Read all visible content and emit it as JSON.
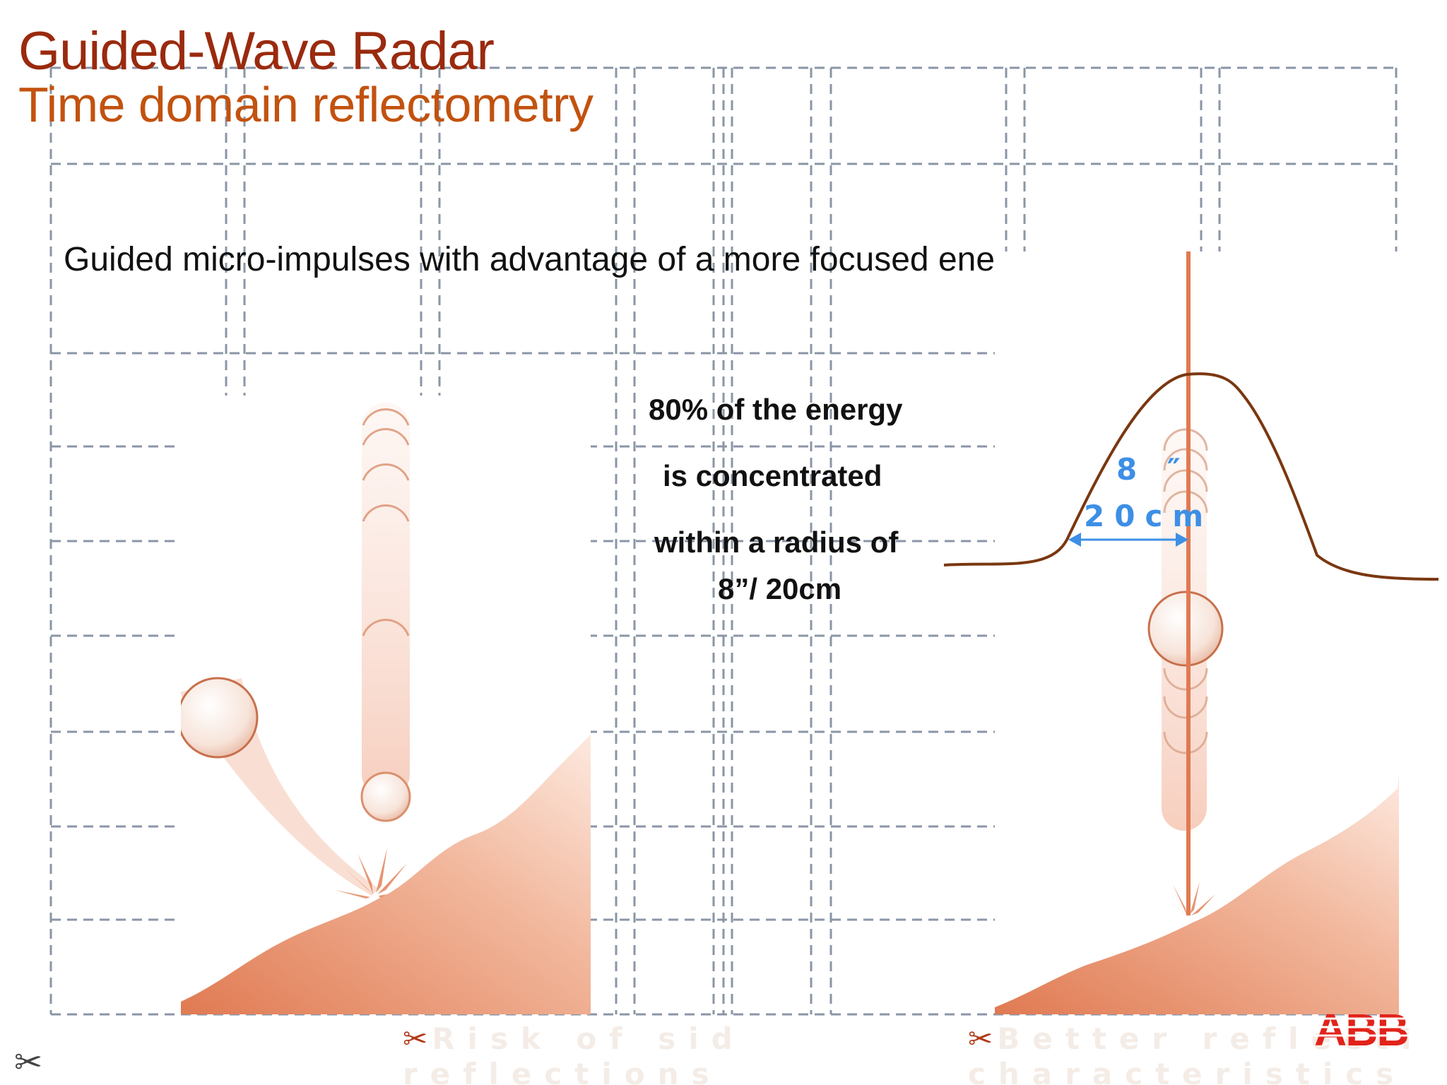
{
  "slide": {
    "title": "Guided-Wave Radar",
    "subtitle": "Time domain reflectometry",
    "intro": "Guided micro-impulses with advantage of a more focused energy",
    "energy_text": [
      "80% of the energy",
      "is concentrated",
      "within a radius of",
      "8”/ 20cm"
    ],
    "dimension_label_in": "8 ″",
    "dimension_label_cm": "20cm",
    "caption_left": {
      "icon": "scissors-icon",
      "line1": "Risk of side",
      "line2": "reflections"
    },
    "caption_right": {
      "icon": "scissors-icon",
      "line1": "Better reflection",
      "line2": "characteristics"
    },
    "corner_icon": "scissors-icon",
    "logo_text": "ABB"
  },
  "colors": {
    "title": "#9a2a0e",
    "subtitle": "#c2520f",
    "accent_blue": "#3d8fe6",
    "curve_brown": "#7a3710",
    "salmon": "#e8835f",
    "logo_red": "#e2231a",
    "grid": "#8a96a6"
  }
}
